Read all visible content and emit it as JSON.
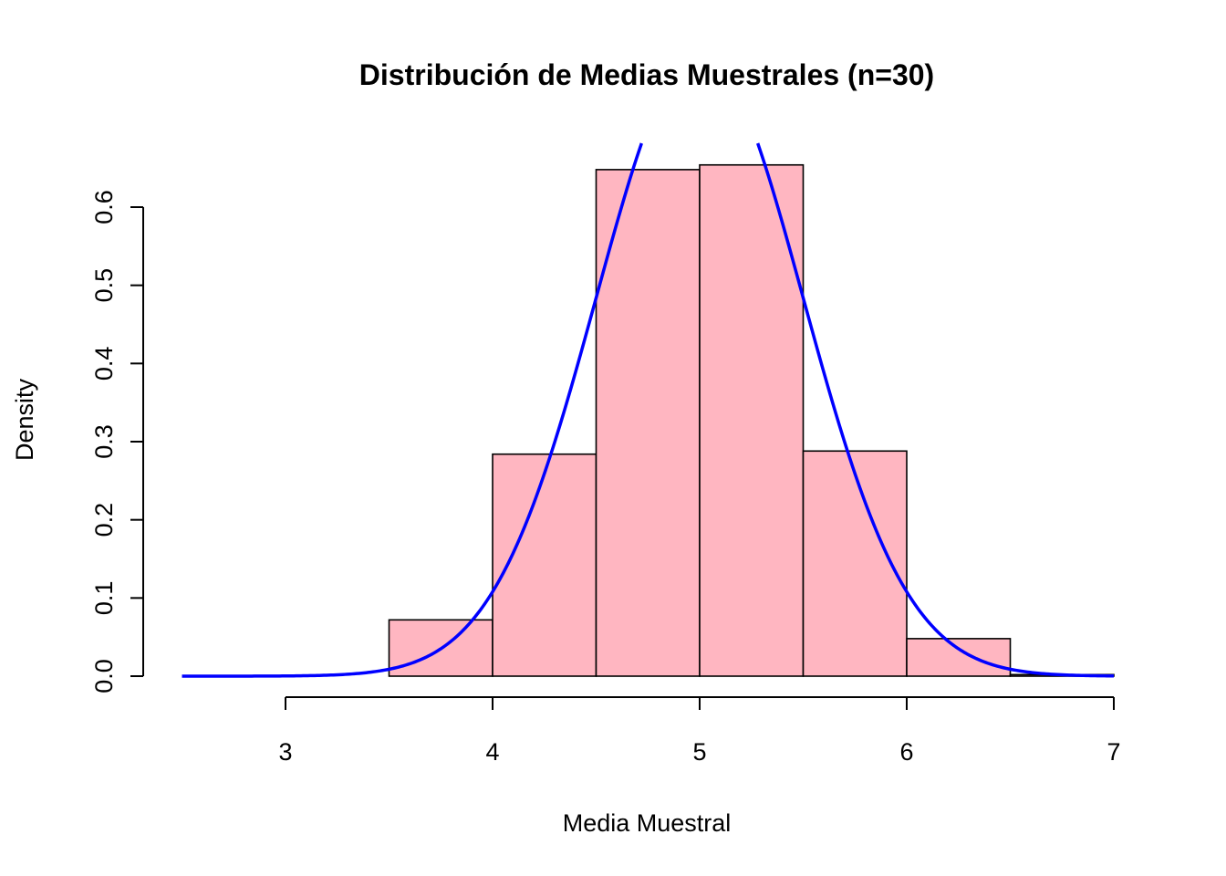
{
  "chart_data": {
    "type": "bar",
    "title": "Distribución de Medias Muestrales (n=30)",
    "xlabel": "Media Muestral",
    "ylabel": "Density",
    "xlim": [
      2.5,
      7
    ],
    "ylim": [
      0,
      0.68
    ],
    "x_ticks": [
      "3",
      "4",
      "5",
      "6",
      "7"
    ],
    "y_ticks": [
      "0.0",
      "0.1",
      "0.2",
      "0.3",
      "0.4",
      "0.5",
      "0.6"
    ],
    "bins": [
      {
        "start": 3.0,
        "end": 3.5,
        "density": 0.0
      },
      {
        "start": 3.5,
        "end": 4.0,
        "density": 0.072
      },
      {
        "start": 4.0,
        "end": 4.5,
        "density": 0.284
      },
      {
        "start": 4.5,
        "end": 5.0,
        "density": 0.648
      },
      {
        "start": 5.0,
        "end": 5.5,
        "density": 0.654
      },
      {
        "start": 5.5,
        "end": 6.0,
        "density": 0.288
      },
      {
        "start": 6.0,
        "end": 6.5,
        "density": 0.048
      },
      {
        "start": 6.5,
        "end": 7.0,
        "density": 0.002
      }
    ],
    "curve": {
      "type": "normal-density",
      "mean": 5.0,
      "sd": 0.5,
      "x_range": [
        2.5,
        7
      ]
    },
    "bar_color": "#FFB6C1",
    "curve_color": "#0000FF"
  }
}
